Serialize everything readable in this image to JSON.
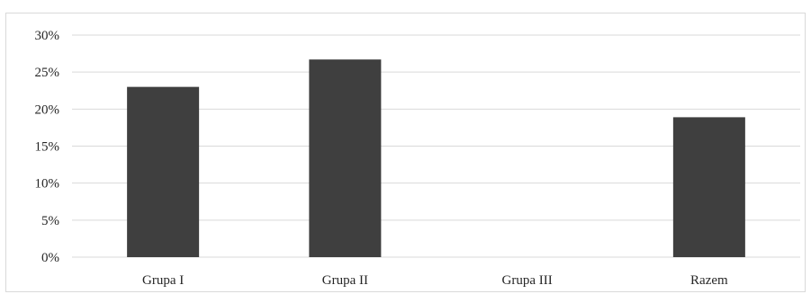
{
  "chart_data": {
    "type": "bar",
    "title": "",
    "xlabel": "",
    "ylabel": "",
    "categories": [
      "Grupa I",
      "Grupa II",
      "Grupa III",
      "Razem"
    ],
    "values": [
      23,
      26.7,
      0,
      18.9
    ],
    "ylim": [
      0,
      30
    ],
    "yticks": [
      "0%",
      "5%",
      "10%",
      "15%",
      "20%",
      "25%",
      "30%"
    ],
    "grid": true,
    "legend": "none",
    "bar_color": "#3f3f3f",
    "gridline_color": "#d9d9d9"
  }
}
